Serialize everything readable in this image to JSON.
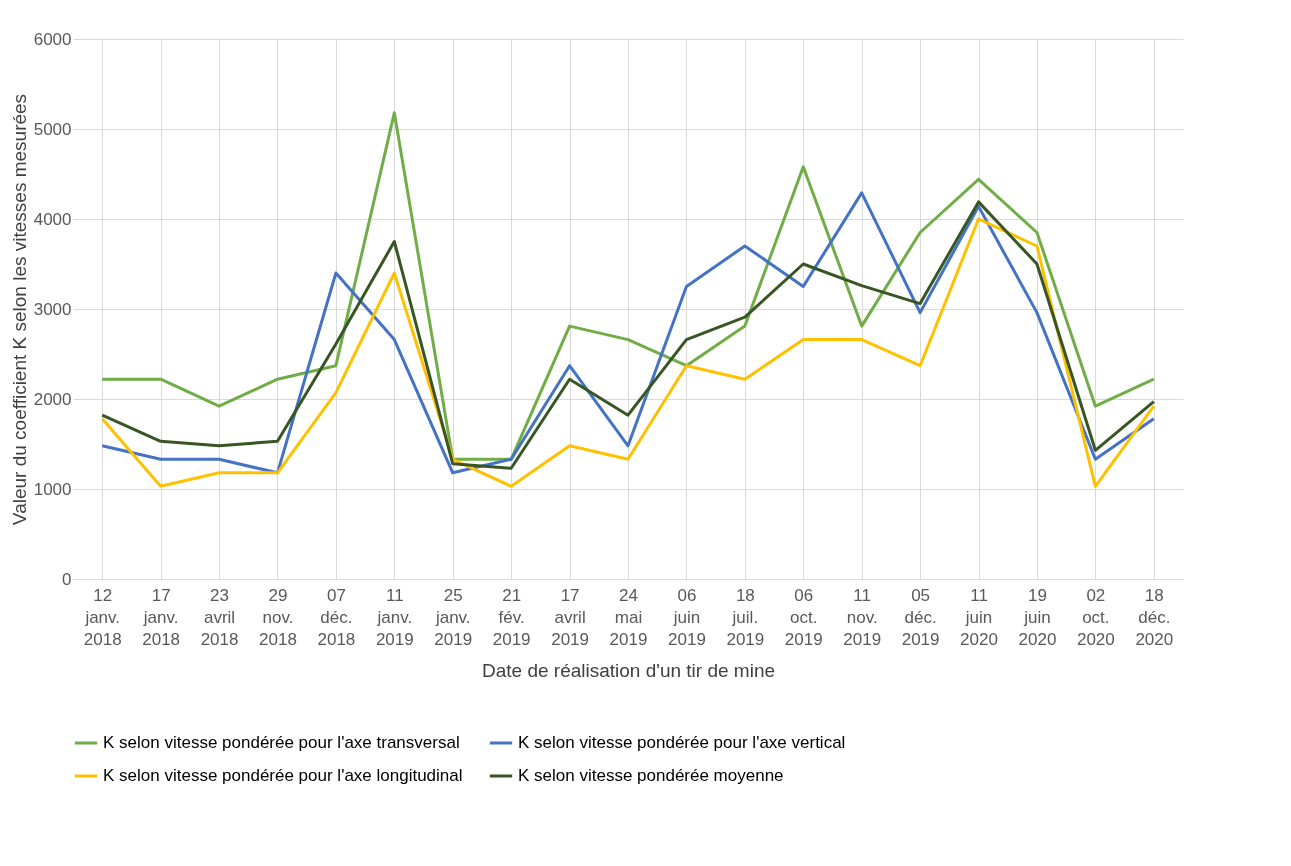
{
  "chart_data": {
    "type": "line",
    "xlabel": "Date de réalisation d'un tir de mine",
    "ylabel": "Valeur du coefficient K selon les vitesses mesurées",
    "categories": [
      "12 janv. 2018",
      "17 janv. 2018",
      "23 avril 2018",
      "29 nov. 2018",
      "07 déc. 2018",
      "11 janv. 2019",
      "25 janv. 2019",
      "21 fév. 2019",
      "17 avril 2019",
      "24 mai 2019",
      "06 juin 2019",
      "18 juil. 2019",
      "06 oct. 2019",
      "11 nov. 2019",
      "05 déc. 2019",
      "11 juin 2020",
      "19 juin 2020",
      "02 oct. 2020",
      "18 déc. 2020"
    ],
    "series": [
      {
        "name": "K selon vitesse pondérée pour l'axe transversal",
        "color": "#70ad47",
        "values": [
          2220,
          2220,
          1920,
          2220,
          2370,
          5180,
          1330,
          1330,
          2810,
          2660,
          2370,
          2810,
          4580,
          2810,
          3850,
          4440,
          3850,
          1920,
          2220
        ]
      },
      {
        "name": "K selon vitesse pondérée pour l'axe vertical",
        "color": "#4472c4",
        "values": [
          1480,
          1330,
          1330,
          1180,
          3400,
          2660,
          1180,
          1330,
          2370,
          1480,
          3250,
          3700,
          3250,
          4290,
          2960,
          4140,
          2960,
          1330,
          1780
        ]
      },
      {
        "name": "K selon vitesse pondérée pour l'axe longitudinal",
        "color": "#ffc000",
        "values": [
          1780,
          1030,
          1180,
          1180,
          2070,
          3400,
          1330,
          1030,
          1480,
          1330,
          2370,
          2220,
          2660,
          2660,
          2370,
          4000,
          3700,
          1030,
          1920
        ]
      },
      {
        "name": "K selon vitesse pondérée moyenne",
        "color": "#375623",
        "values": [
          1820,
          1530,
          1480,
          1530,
          2610,
          3750,
          1280,
          1230,
          2220,
          1820,
          2660,
          2910,
          3500,
          3260,
          3060,
          4190,
          3500,
          1430,
          1970
        ]
      }
    ],
    "ylim": [
      0,
      6000
    ],
    "yticks": [
      0,
      1000,
      2000,
      3000,
      4000,
      5000,
      6000
    ],
    "grid": true,
    "legend": "bottom",
    "marker": "none",
    "line_style": "solid"
  }
}
